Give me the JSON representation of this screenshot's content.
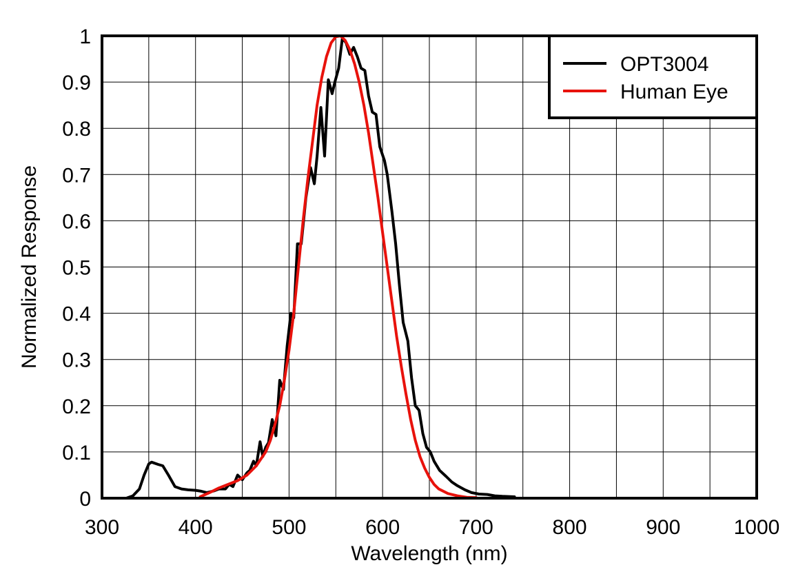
{
  "chart_data": {
    "type": "line",
    "title": "",
    "xlabel": "Wavelength (nm)",
    "ylabel": "Normalized Response",
    "xlim": [
      300,
      1000
    ],
    "ylim": [
      0,
      1
    ],
    "xticks": [
      300,
      400,
      500,
      600,
      700,
      800,
      900,
      1000
    ],
    "yticks": [
      0,
      0.1,
      0.2,
      0.3,
      0.4,
      0.5,
      0.6,
      0.7,
      0.8,
      0.9,
      1
    ],
    "xtick_labels": [
      "300",
      "400",
      "500",
      "600",
      "700",
      "800",
      "900",
      "1000"
    ],
    "ytick_labels": [
      "0",
      "0.1",
      "0.2",
      "0.3",
      "0.4",
      "0.5",
      "0.6",
      "0.7",
      "0.8",
      "0.9",
      "1"
    ],
    "grid": true,
    "legend_position": "top-right",
    "series": [
      {
        "name": "OPT3004",
        "color": "#000000",
        "points": [
          [
            326,
            0.0
          ],
          [
            333,
            0.005
          ],
          [
            340,
            0.02
          ],
          [
            345,
            0.05
          ],
          [
            350,
            0.074
          ],
          [
            353,
            0.078
          ],
          [
            360,
            0.073
          ],
          [
            365,
            0.07
          ],
          [
            371,
            0.05
          ],
          [
            378,
            0.025
          ],
          [
            385,
            0.02
          ],
          [
            392,
            0.018
          ],
          [
            400,
            0.017
          ],
          [
            406,
            0.015
          ],
          [
            412,
            0.012
          ],
          [
            420,
            0.016
          ],
          [
            425,
            0.02
          ],
          [
            432,
            0.02
          ],
          [
            436,
            0.03
          ],
          [
            440,
            0.025
          ],
          [
            445,
            0.05
          ],
          [
            450,
            0.04
          ],
          [
            455,
            0.055
          ],
          [
            458,
            0.06
          ],
          [
            462,
            0.08
          ],
          [
            465,
            0.07
          ],
          [
            469,
            0.122
          ],
          [
            472,
            0.09
          ],
          [
            475,
            0.11
          ],
          [
            478,
            0.12
          ],
          [
            482,
            0.17
          ],
          [
            486,
            0.135
          ],
          [
            490,
            0.255
          ],
          [
            494,
            0.235
          ],
          [
            498,
            0.33
          ],
          [
            502,
            0.4
          ],
          [
            505,
            0.39
          ],
          [
            509,
            0.55
          ],
          [
            513,
            0.55
          ],
          [
            518,
            0.65
          ],
          [
            523,
            0.715
          ],
          [
            527,
            0.68
          ],
          [
            530,
            0.74
          ],
          [
            534,
            0.845
          ],
          [
            538,
            0.74
          ],
          [
            542,
            0.905
          ],
          [
            546,
            0.875
          ],
          [
            549,
            0.9
          ],
          [
            553,
            0.93
          ],
          [
            557,
            0.995
          ],
          [
            561,
            0.985
          ],
          [
            565,
            0.96
          ],
          [
            569,
            0.975
          ],
          [
            573,
            0.955
          ],
          [
            577,
            0.93
          ],
          [
            581,
            0.925
          ],
          [
            585,
            0.87
          ],
          [
            589,
            0.835
          ],
          [
            593,
            0.83
          ],
          [
            597,
            0.76
          ],
          [
            602,
            0.73
          ],
          [
            605,
            0.7
          ],
          [
            610,
            0.62
          ],
          [
            614,
            0.55
          ],
          [
            618,
            0.46
          ],
          [
            622,
            0.38
          ],
          [
            627,
            0.34
          ],
          [
            631,
            0.26
          ],
          [
            635,
            0.2
          ],
          [
            639,
            0.19
          ],
          [
            643,
            0.14
          ],
          [
            647,
            0.11
          ],
          [
            651,
            0.1
          ],
          [
            655,
            0.08
          ],
          [
            661,
            0.06
          ],
          [
            668,
            0.047
          ],
          [
            674,
            0.035
          ],
          [
            680,
            0.027
          ],
          [
            688,
            0.018
          ],
          [
            695,
            0.012
          ],
          [
            703,
            0.009
          ],
          [
            712,
            0.008
          ],
          [
            720,
            0.005
          ],
          [
            728,
            0.004
          ],
          [
            741,
            0.003
          ]
        ]
      },
      {
        "name": "Human Eye",
        "color": "#e8120c",
        "points": [
          [
            405,
            0.003
          ],
          [
            415,
            0.012
          ],
          [
            425,
            0.022
          ],
          [
            435,
            0.03
          ],
          [
            445,
            0.038
          ],
          [
            455,
            0.05
          ],
          [
            465,
            0.07
          ],
          [
            475,
            0.1
          ],
          [
            480,
            0.125
          ],
          [
            485,
            0.16
          ],
          [
            490,
            0.2
          ],
          [
            495,
            0.255
          ],
          [
            500,
            0.32
          ],
          [
            505,
            0.4
          ],
          [
            510,
            0.5
          ],
          [
            515,
            0.6
          ],
          [
            520,
            0.69
          ],
          [
            525,
            0.77
          ],
          [
            530,
            0.85
          ],
          [
            535,
            0.91
          ],
          [
            540,
            0.955
          ],
          [
            545,
            0.985
          ],
          [
            550,
            0.998
          ],
          [
            555,
            1.0
          ],
          [
            560,
            0.99
          ],
          [
            565,
            0.97
          ],
          [
            570,
            0.94
          ],
          [
            575,
            0.9
          ],
          [
            580,
            0.85
          ],
          [
            585,
            0.79
          ],
          [
            590,
            0.72
          ],
          [
            595,
            0.65
          ],
          [
            600,
            0.575
          ],
          [
            605,
            0.5
          ],
          [
            610,
            0.425
          ],
          [
            615,
            0.35
          ],
          [
            620,
            0.285
          ],
          [
            625,
            0.225
          ],
          [
            630,
            0.17
          ],
          [
            635,
            0.125
          ],
          [
            640,
            0.09
          ],
          [
            645,
            0.065
          ],
          [
            650,
            0.045
          ],
          [
            655,
            0.03
          ],
          [
            660,
            0.02
          ],
          [
            670,
            0.01
          ],
          [
            680,
            0.005
          ],
          [
            690,
            0.002
          ],
          [
            700,
            0.001
          ]
        ]
      }
    ]
  }
}
